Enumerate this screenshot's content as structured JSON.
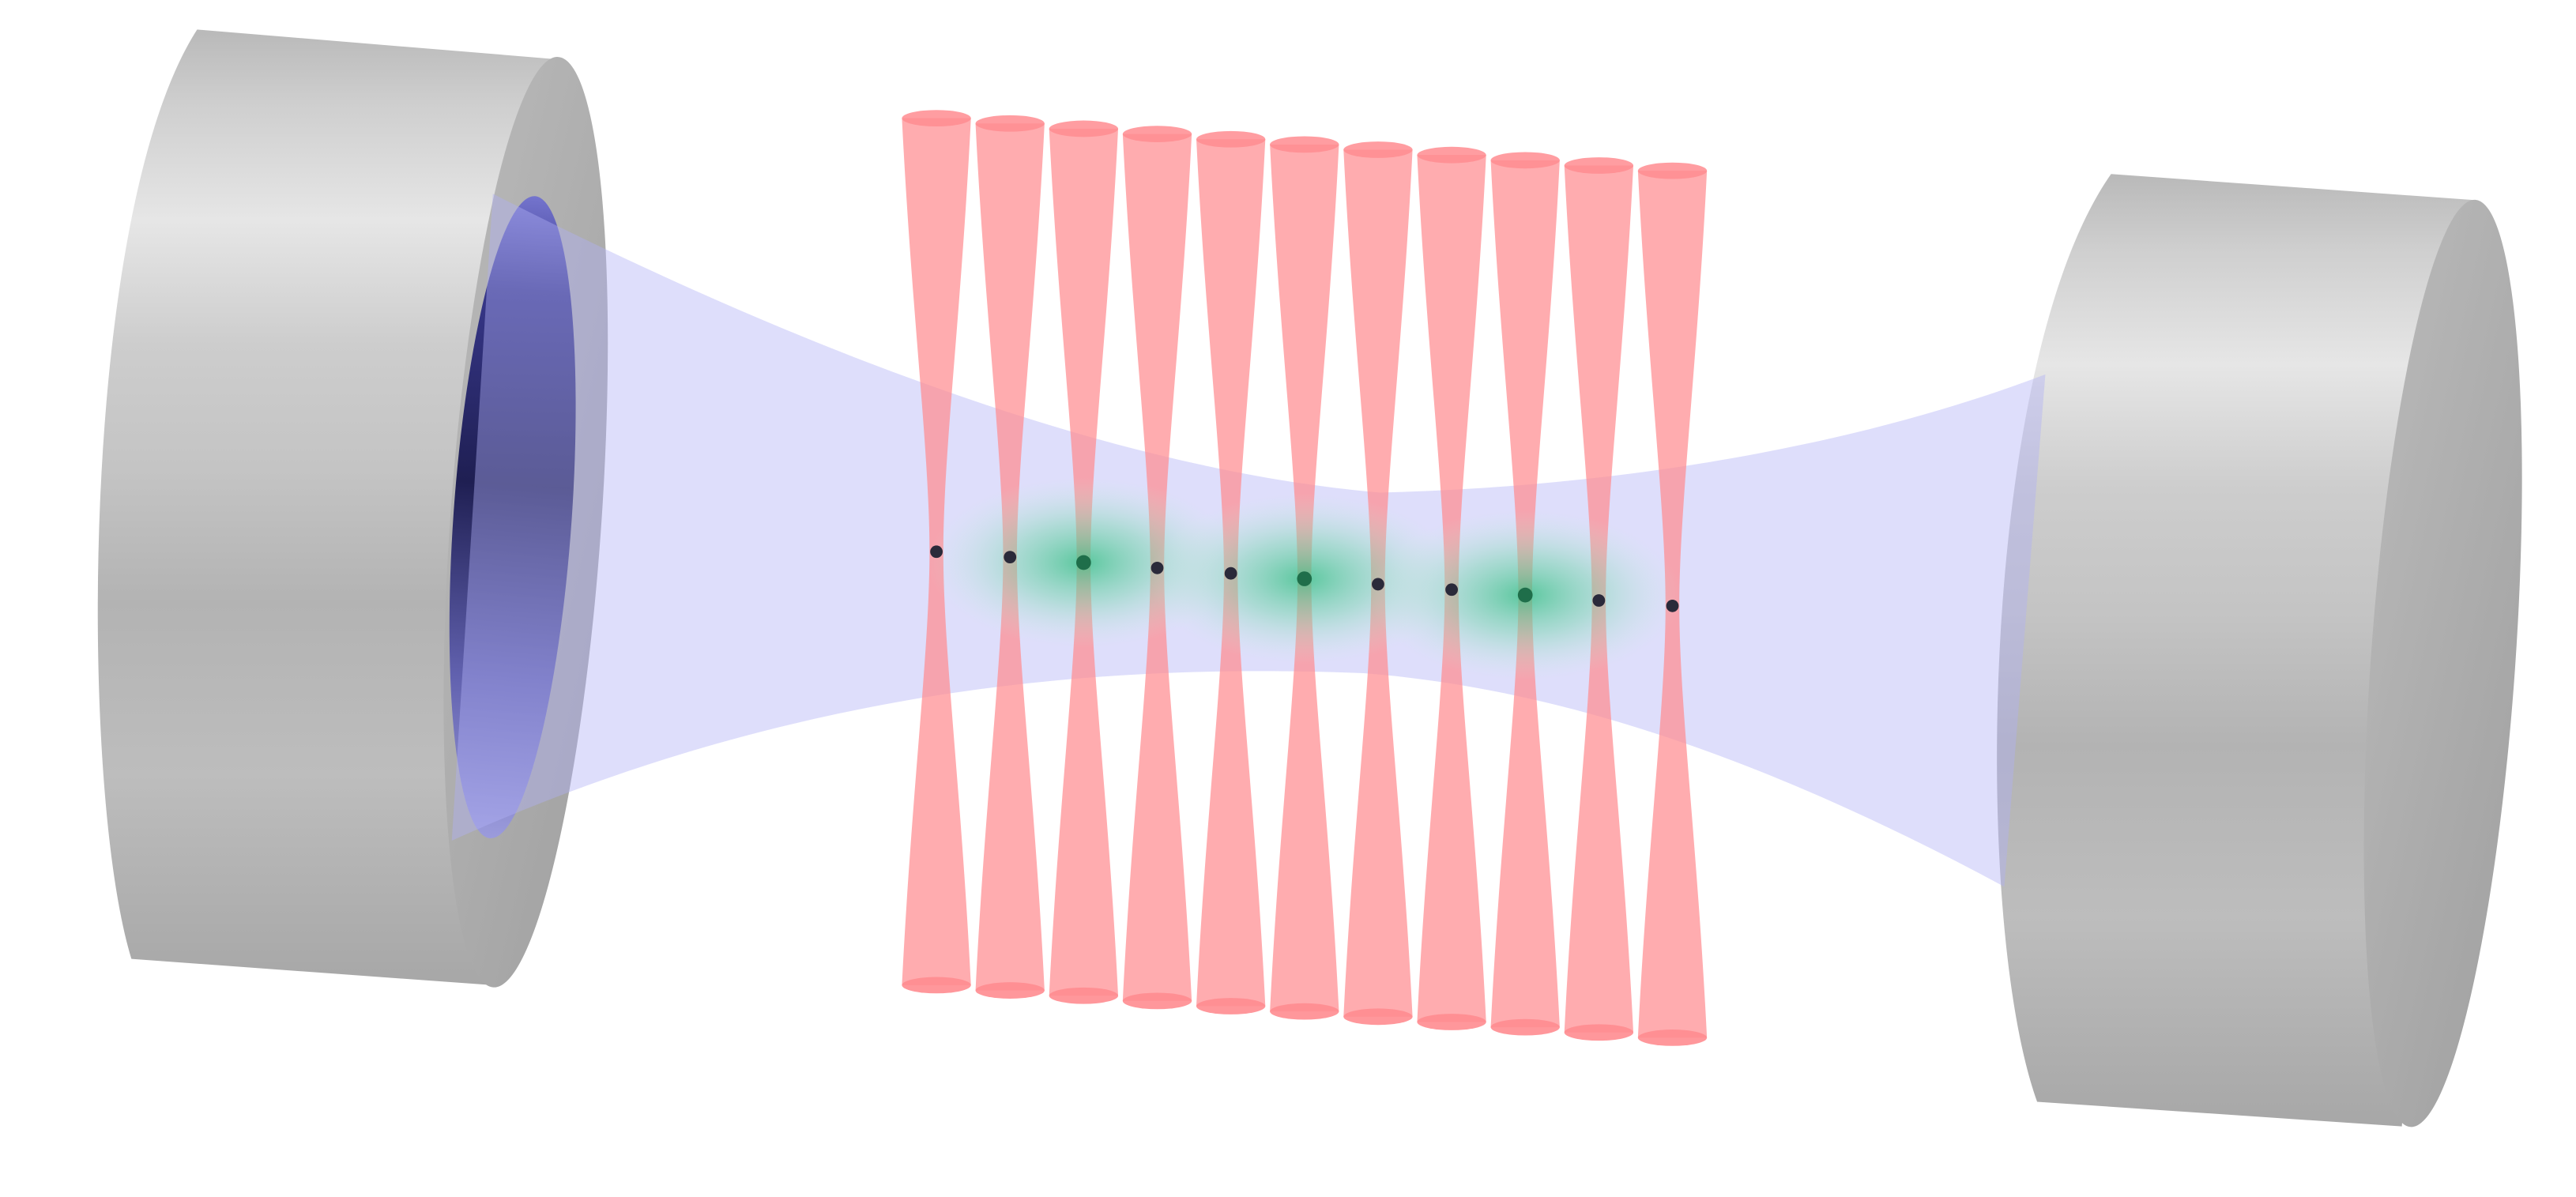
{
  "colors": {
    "background": "#ffffff",
    "mirror_body_light": "#e3e3e3",
    "mirror_body_mid": "#c4c4c4",
    "mirror_body_dark": "#9c9c9c",
    "mirror_face": "#b0b0b0",
    "mirror_coating_dark": "#1c1c5a",
    "mirror_coating_light": "#8a8ad8",
    "cavity_beam": "#b8b8f8",
    "tweezer_beam": "#ff8c90",
    "atom_dot": "#2a2a3a",
    "cluster_glow": "#3cc88a",
    "cluster_dot": "#1f6e4a"
  },
  "diagram": {
    "components": {
      "left_mirror": {
        "kind": "cavity-mirror",
        "side": "left",
        "coated_face": true
      },
      "right_mirror": {
        "kind": "cavity-mirror",
        "side": "right",
        "coated_face": false
      },
      "cavity_mode": {
        "kind": "gaussian-beam",
        "color": "lavender"
      },
      "tweezer_array": {
        "kind": "optical-tweezers",
        "count": 11,
        "color": "salmon"
      },
      "atom_array": {
        "kind": "trapped-atoms",
        "count": 11
      },
      "atom_clusters": {
        "kind": "entangled-cluster-glow",
        "count": 3,
        "color": "green"
      }
    },
    "highlighted_atom_indices": [
      2,
      5,
      8
    ]
  }
}
